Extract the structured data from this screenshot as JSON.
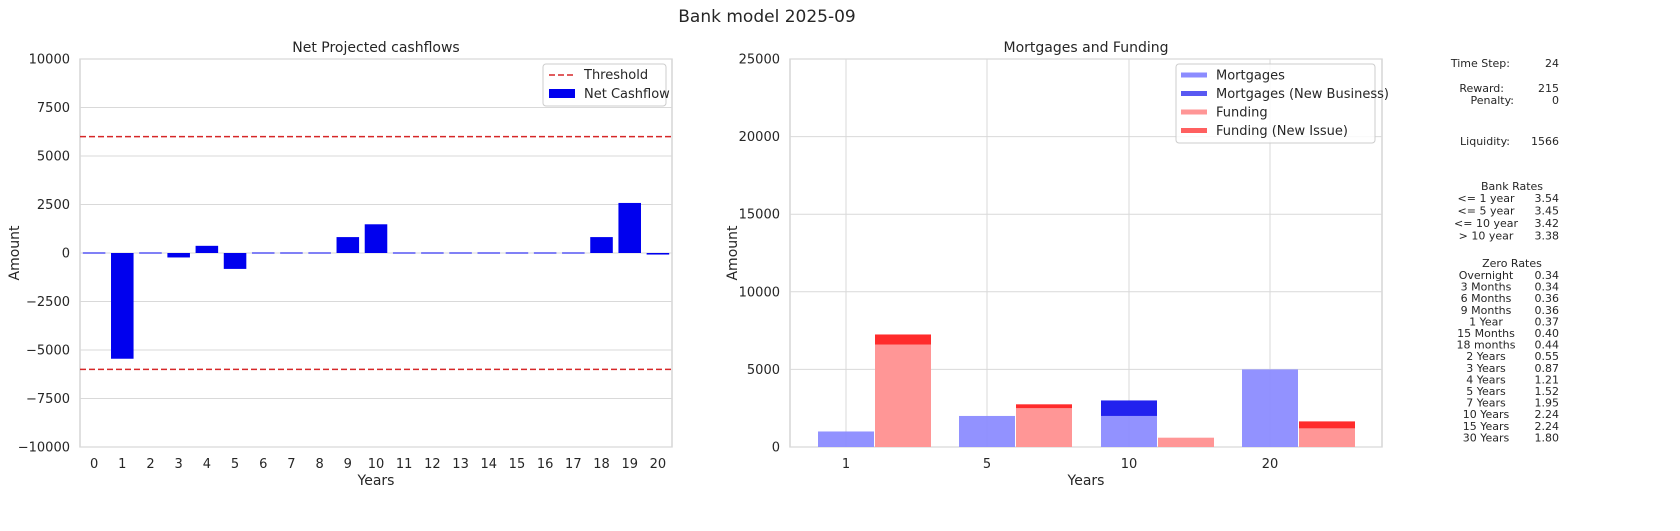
{
  "figure": {
    "title": "Bank model 2025-09"
  },
  "chart_data": [
    {
      "type": "bar",
      "title": "Net Projected cashflows",
      "xlabel": "Years",
      "ylabel": "Amount",
      "categories": [
        "0",
        "1",
        "2",
        "3",
        "4",
        "5",
        "6",
        "7",
        "8",
        "9",
        "10",
        "11",
        "12",
        "13",
        "14",
        "15",
        "16",
        "17",
        "18",
        "19",
        "20"
      ],
      "series": [
        {
          "name": "Net Cashflow",
          "color": "#0000ee",
          "values": [
            0,
            -5450,
            0,
            -230,
            370,
            -820,
            0,
            0,
            0,
            820,
            1480,
            0,
            0,
            0,
            0,
            0,
            0,
            0,
            820,
            2580,
            -80
          ]
        }
      ],
      "hlines": [
        {
          "name": "Threshold",
          "values": [
            6000,
            -6000
          ],
          "color": "#d62728",
          "style": "dashed"
        }
      ],
      "ylim": [
        -10000,
        10000
      ],
      "yticks": [
        -10000,
        -7500,
        -5000,
        -2500,
        0,
        2500,
        5000,
        7500,
        10000
      ],
      "ytick_labels": [
        "−10000",
        "−7500",
        "−5000",
        "−2500",
        "0",
        "2500",
        "5000",
        "7500",
        "10000"
      ],
      "grid": true,
      "legend": {
        "placement": "top-right",
        "entries": [
          "Threshold",
          "Net Cashflow"
        ]
      }
    },
    {
      "type": "bar",
      "title": "Mortgages and Funding",
      "xlabel": "Years",
      "ylabel": "Amount",
      "categories": [
        "1",
        "5",
        "10",
        "20"
      ],
      "series": [
        {
          "name": "Mortgages",
          "color": "#8c8cff",
          "values": [
            1000,
            2000,
            2000,
            5000
          ]
        },
        {
          "name": "Mortgages (New Business)",
          "color": "#2222ee",
          "values": [
            0,
            0,
            1000,
            0
          ]
        },
        {
          "name": "Funding",
          "color": "#ff9696",
          "values": [
            6600,
            2500,
            600,
            1200
          ]
        },
        {
          "name": "Funding (New Issue)",
          "color": "#ff2b2b",
          "values": [
            650,
            250,
            0,
            450
          ]
        }
      ],
      "ylim": [
        0,
        25000
      ],
      "yticks": [
        0,
        5000,
        10000,
        15000,
        20000,
        25000
      ],
      "grid": true,
      "legend": {
        "placement": "top-right",
        "entries": [
          "Mortgages",
          "Mortgages (New Business)",
          "Funding",
          "Funding (New Issue)"
        ]
      }
    }
  ],
  "panel": {
    "time_step": {
      "label": "Time Step:",
      "value": "24"
    },
    "reward": {
      "label": "Reward:",
      "value": "215"
    },
    "penalty": {
      "label": "Penalty:",
      "value": "0"
    },
    "liquidity": {
      "label": "Liquidity:",
      "value": "1566"
    },
    "bank_rates": {
      "title": "Bank Rates",
      "rows": [
        {
          "label": "<= 1 year",
          "value": "3.54"
        },
        {
          "label": "<= 5 year",
          "value": "3.45"
        },
        {
          "label": "<= 10 year",
          "value": "3.42"
        },
        {
          "label": "> 10 year",
          "value": "3.38"
        }
      ]
    },
    "zero_rates": {
      "title": "Zero Rates",
      "rows": [
        {
          "label": "Overnight",
          "value": "0.34"
        },
        {
          "label": "3 Months",
          "value": "0.34"
        },
        {
          "label": "6 Months",
          "value": "0.36"
        },
        {
          "label": "9 Months",
          "value": "0.36"
        },
        {
          "label": "1 Year",
          "value": "0.37"
        },
        {
          "label": "15 Months",
          "value": "0.40"
        },
        {
          "label": "18 months",
          "value": "0.44"
        },
        {
          "label": "2 Years",
          "value": "0.55"
        },
        {
          "label": "3 Years",
          "value": "0.87"
        },
        {
          "label": "4 Years",
          "value": "1.21"
        },
        {
          "label": "5 Years",
          "value": "1.52"
        },
        {
          "label": "7 Years",
          "value": "1.95"
        },
        {
          "label": "10 Years",
          "value": "2.24"
        },
        {
          "label": "15 Years",
          "value": "2.24"
        },
        {
          "label": "30 Years",
          "value": "1.80"
        }
      ]
    }
  }
}
